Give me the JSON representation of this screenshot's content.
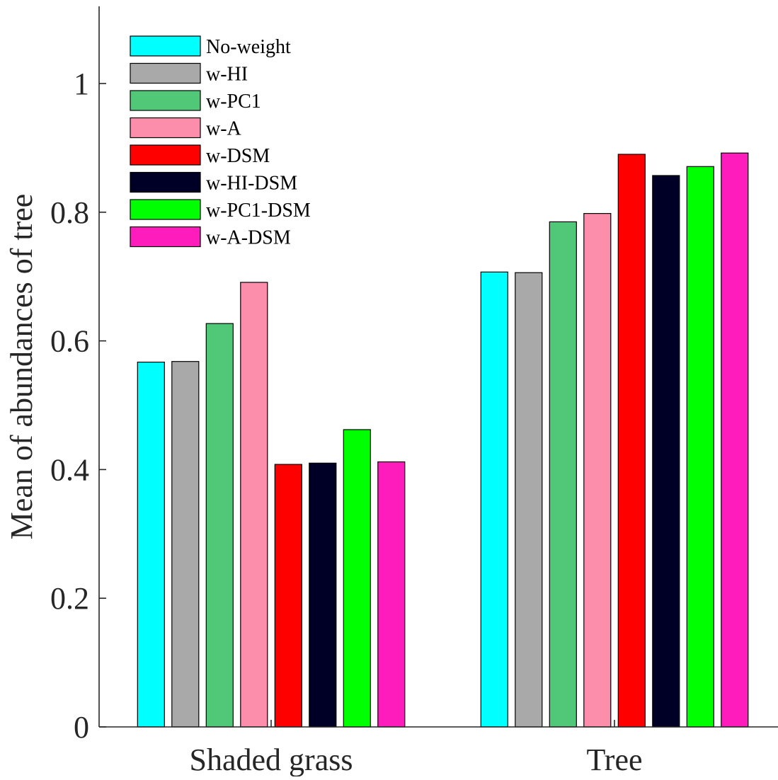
{
  "chart_data": {
    "type": "bar",
    "title": "",
    "xlabel": "",
    "ylabel": "Mean of abundances of tree",
    "categories": [
      "Shaded grass",
      "Tree"
    ],
    "ylim": [
      0,
      1.12
    ],
    "yticks": [
      0,
      0.2,
      0.4,
      0.6,
      0.8,
      1
    ],
    "ytick_labels": [
      "0",
      "0.2",
      "0.4",
      "0.6",
      "0.8",
      "1"
    ],
    "grid": false,
    "legend_position": "top-left",
    "series": [
      {
        "name": "No-weight",
        "color": "#00FFFF",
        "values": [
          0.567,
          0.707
        ]
      },
      {
        "name": "w-HI",
        "color": "#A9A9A9",
        "values": [
          0.568,
          0.706
        ]
      },
      {
        "name": "w-PC1",
        "color": "#50C878",
        "values": [
          0.627,
          0.785
        ]
      },
      {
        "name": "w-A",
        "color": "#FC8EAC",
        "values": [
          0.691,
          0.798
        ]
      },
      {
        "name": "w-DSM",
        "color": "#FF0000",
        "values": [
          0.408,
          0.89
        ]
      },
      {
        "name": "w-HI-DSM",
        "color": "#000026",
        "values": [
          0.41,
          0.857
        ]
      },
      {
        "name": "w-PC1-DSM",
        "color": "#00FF00",
        "values": [
          0.462,
          0.871
        ]
      },
      {
        "name": "w-A-DSM",
        "color": "#FF1CBD",
        "values": [
          0.412,
          0.892
        ]
      }
    ]
  }
}
